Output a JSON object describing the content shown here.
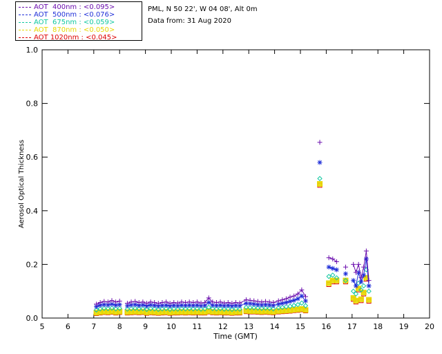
{
  "header": {
    "station": "PML, N 50 22', W 04 08', Alt 0m",
    "date_line": "Data from: 31 Aug 2020"
  },
  "legend": [
    {
      "label": "AOT  400nm : <0.095>",
      "color": "#6a0dad"
    },
    {
      "label": "AOT  500nm : <0.076>",
      "color": "#1f2fd8"
    },
    {
      "label": "AOT  675nm : <0.059>",
      "color": "#10c8a0"
    },
    {
      "label": "AOT  870nm : <0.050>",
      "color": "#e8d800"
    },
    {
      "label": "AOT 1020nm : <0.045>",
      "color": "#dd0000"
    }
  ],
  "chart_data": {
    "type": "scatter",
    "title": "",
    "xlabel": "Time (GMT)",
    "ylabel": "Aerosol Optical Thickness",
    "xlim": [
      5,
      20
    ],
    "ylim": [
      0.0,
      1.0
    ],
    "xticks": [
      "5",
      "6",
      "7",
      "8",
      "9",
      "10",
      "11",
      "12",
      "13",
      "14",
      "15",
      "16",
      "17",
      "18",
      "19",
      "20"
    ],
    "yticks": [
      "0.0",
      "0.2",
      "0.4",
      "0.6",
      "0.8",
      "1.0"
    ],
    "grid": false,
    "x": [
      7.1,
      7.25,
      7.4,
      7.55,
      7.7,
      7.85,
      8.0,
      8.3,
      8.45,
      8.6,
      8.75,
      8.9,
      9.05,
      9.2,
      9.35,
      9.5,
      9.65,
      9.8,
      9.95,
      10.1,
      10.25,
      10.4,
      10.55,
      10.7,
      10.85,
      11.0,
      11.15,
      11.3,
      11.45,
      11.6,
      11.75,
      11.9,
      12.05,
      12.2,
      12.35,
      12.5,
      12.65,
      12.9,
      13.05,
      13.2,
      13.35,
      13.5,
      13.65,
      13.8,
      13.95,
      14.15,
      14.3,
      14.45,
      14.6,
      14.75,
      14.9,
      15.05,
      15.2,
      15.75,
      16.1,
      16.25,
      16.4,
      16.75,
      17.05,
      17.15,
      17.25,
      17.35,
      17.45,
      17.55,
      17.65
    ],
    "series": [
      {
        "name": "AOT  400nm",
        "marker": "plus",
        "connected": true,
        "values": [
          0.052,
          0.058,
          0.062,
          0.06,
          0.065,
          0.06,
          0.063,
          0.055,
          0.06,
          0.062,
          0.058,
          0.06,
          0.055,
          0.06,
          0.058,
          0.055,
          0.058,
          0.06,
          0.055,
          0.058,
          0.056,
          0.06,
          0.058,
          0.06,
          0.058,
          0.06,
          0.056,
          0.058,
          0.075,
          0.06,
          0.058,
          0.06,
          0.056,
          0.058,
          0.055,
          0.058,
          0.056,
          0.068,
          0.066,
          0.064,
          0.062,
          0.06,
          0.062,
          0.06,
          0.058,
          0.064,
          0.068,
          0.072,
          0.078,
          0.082,
          0.09,
          0.105,
          0.08,
          0.655,
          0.225,
          0.22,
          0.21,
          0.19,
          0.2,
          0.17,
          0.2,
          0.15,
          0.19,
          0.25,
          0.14
        ]
      },
      {
        "name": "AOT  500nm",
        "marker": "asterisk",
        "connected": true,
        "values": [
          0.043,
          0.048,
          0.05,
          0.049,
          0.052,
          0.048,
          0.05,
          0.046,
          0.049,
          0.05,
          0.047,
          0.049,
          0.045,
          0.049,
          0.047,
          0.045,
          0.047,
          0.048,
          0.045,
          0.047,
          0.046,
          0.048,
          0.047,
          0.048,
          0.047,
          0.048,
          0.046,
          0.047,
          0.058,
          0.048,
          0.047,
          0.048,
          0.046,
          0.047,
          0.045,
          0.047,
          0.046,
          0.055,
          0.054,
          0.052,
          0.05,
          0.049,
          0.05,
          0.049,
          0.047,
          0.052,
          0.055,
          0.058,
          0.062,
          0.066,
          0.072,
          0.082,
          0.064,
          0.58,
          0.19,
          0.185,
          0.18,
          0.165,
          0.14,
          0.12,
          0.17,
          0.135,
          0.16,
          0.22,
          0.12
        ]
      },
      {
        "name": "AOT  675nm",
        "marker": "diamond",
        "connected": false,
        "values": [
          0.03,
          0.034,
          0.036,
          0.035,
          0.037,
          0.034,
          0.036,
          0.033,
          0.035,
          0.036,
          0.034,
          0.035,
          0.032,
          0.035,
          0.034,
          0.032,
          0.034,
          0.035,
          0.032,
          0.034,
          0.033,
          0.035,
          0.034,
          0.035,
          0.034,
          0.035,
          0.033,
          0.034,
          0.04,
          0.035,
          0.034,
          0.035,
          0.033,
          0.034,
          0.032,
          0.034,
          0.033,
          0.04,
          0.039,
          0.038,
          0.037,
          0.036,
          0.037,
          0.036,
          0.034,
          0.038,
          0.04,
          0.042,
          0.044,
          0.047,
          0.05,
          0.056,
          0.046,
          0.52,
          0.155,
          0.16,
          0.15,
          0.14,
          0.1,
          0.09,
          0.13,
          0.105,
          0.12,
          0.18,
          0.1
        ]
      },
      {
        "name": "AOT  870nm",
        "marker": "square",
        "connected": false,
        "values": [
          0.02,
          0.022,
          0.024,
          0.023,
          0.025,
          0.022,
          0.024,
          0.022,
          0.023,
          0.024,
          0.023,
          0.024,
          0.021,
          0.023,
          0.022,
          0.021,
          0.022,
          0.023,
          0.021,
          0.022,
          0.022,
          0.023,
          0.022,
          0.023,
          0.022,
          0.023,
          0.022,
          0.022,
          0.026,
          0.023,
          0.022,
          0.023,
          0.022,
          0.022,
          0.021,
          0.022,
          0.022,
          0.027,
          0.026,
          0.026,
          0.025,
          0.024,
          0.025,
          0.024,
          0.023,
          0.026,
          0.027,
          0.028,
          0.029,
          0.031,
          0.032,
          0.034,
          0.03,
          0.5,
          0.13,
          0.14,
          0.14,
          0.14,
          0.075,
          0.065,
          0.11,
          0.07,
          0.095,
          0.15,
          0.068
        ]
      },
      {
        "name": "AOT 1020nm",
        "marker": "square",
        "connected": false,
        "values": [
          0.017,
          0.019,
          0.021,
          0.02,
          0.022,
          0.019,
          0.021,
          0.019,
          0.02,
          0.021,
          0.02,
          0.021,
          0.018,
          0.02,
          0.019,
          0.018,
          0.019,
          0.02,
          0.018,
          0.019,
          0.019,
          0.02,
          0.019,
          0.02,
          0.019,
          0.02,
          0.019,
          0.019,
          0.023,
          0.02,
          0.019,
          0.02,
          0.019,
          0.019,
          0.018,
          0.019,
          0.019,
          0.024,
          0.023,
          0.023,
          0.022,
          0.021,
          0.022,
          0.021,
          0.02,
          0.023,
          0.024,
          0.025,
          0.026,
          0.028,
          0.029,
          0.031,
          0.027,
          0.495,
          0.125,
          0.135,
          0.135,
          0.135,
          0.07,
          0.06,
          0.105,
          0.065,
          0.09,
          0.145,
          0.063
        ]
      }
    ]
  }
}
